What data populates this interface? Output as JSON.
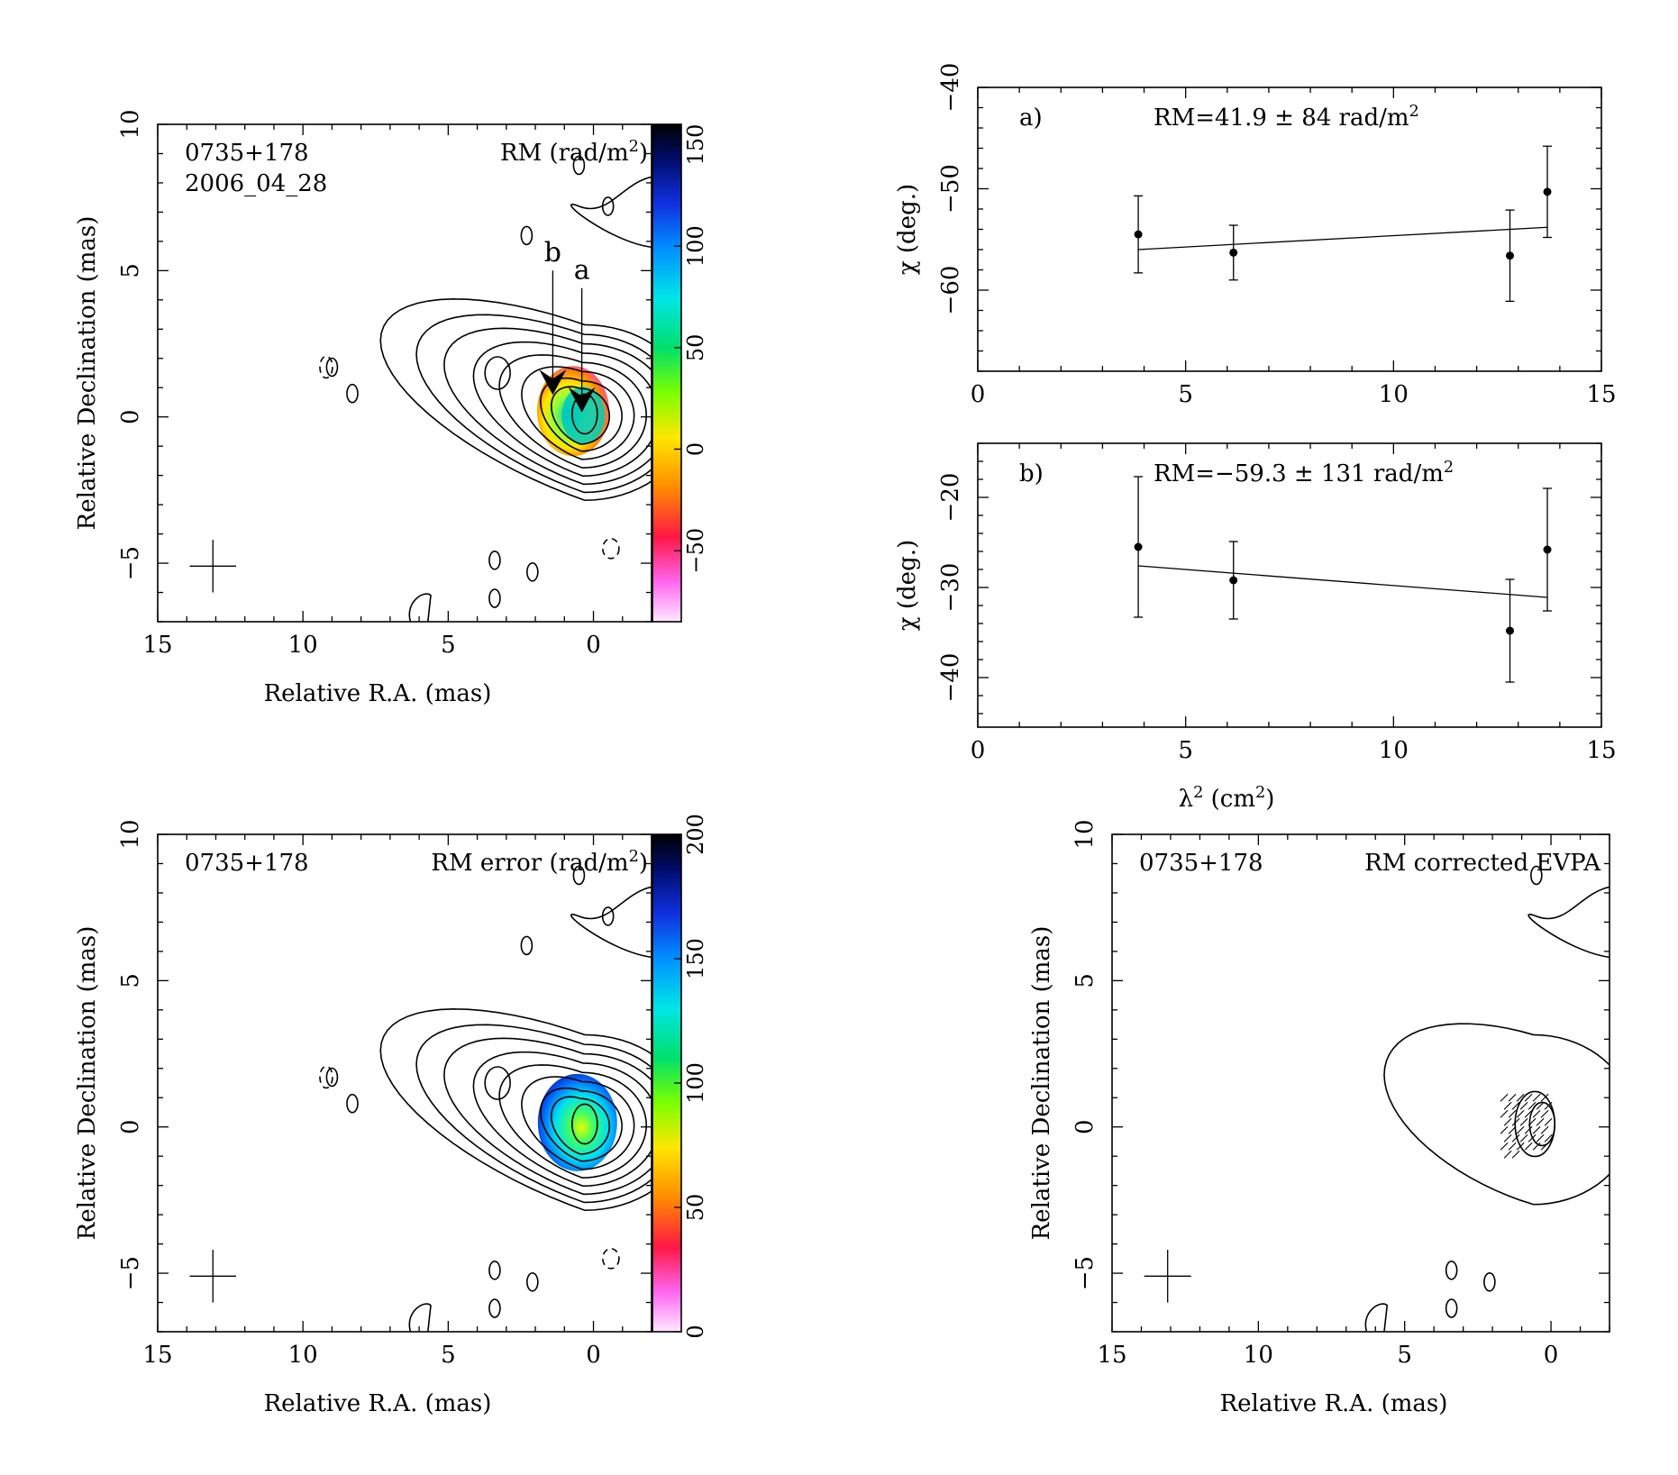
{
  "chart_data": [
    {
      "id": "rm_map",
      "type": "heatmap",
      "source_label": "0735+178",
      "epoch_label": "2006_04_28",
      "colorbar_title": "RM (rad/m²)",
      "xlabel": "Relative R.A. (mas)",
      "ylabel": "Relative Declination (mas)",
      "xlim": [
        15,
        -2
      ],
      "ylim": [
        -7,
        10
      ],
      "xticks": [
        "15",
        "10",
        "5",
        "0"
      ],
      "yticks": [
        "−5",
        "0",
        "5",
        "10"
      ],
      "colorbar_range": [
        -85,
        160
      ],
      "colorbar_ticks": [
        "−50",
        "0",
        "50",
        "100",
        "150"
      ],
      "region_markers": [
        {
          "label": "b",
          "x": 1.4,
          "y": 1.0
        },
        {
          "label": "a",
          "x": 0.4,
          "y": 0.4
        }
      ]
    },
    {
      "id": "fit_a",
      "type": "scatter",
      "panel_label": "a)",
      "annotation": "RM=41.9 ± 84 rad/m²",
      "xlabel": "",
      "ylabel": "χ (deg.)",
      "xlim": [
        0,
        15
      ],
      "ylim": [
        -68,
        -40
      ],
      "xticks": [
        "0",
        "5",
        "10",
        "15"
      ],
      "yticks": [
        "−60",
        "−50",
        "−40"
      ],
      "points": [
        {
          "x": 3.86,
          "y": -54.5,
          "err": 3.8
        },
        {
          "x": 6.15,
          "y": -56.3,
          "err": 2.7
        },
        {
          "x": 12.8,
          "y": -56.6,
          "err": 4.5
        },
        {
          "x": 13.7,
          "y": -50.3,
          "err": 4.5
        }
      ],
      "fit": [
        [
          3.86,
          -56.0
        ],
        [
          13.7,
          -53.8
        ]
      ]
    },
    {
      "id": "fit_b",
      "type": "scatter",
      "panel_label": "b)",
      "annotation": "RM=−59.3 ± 131 rad/m²",
      "xlabel": "λ² (cm²)",
      "ylabel": "χ (deg.)",
      "xlim": [
        0,
        15
      ],
      "ylim": [
        -45.5,
        -14
      ],
      "xticks": [
        "0",
        "5",
        "10",
        "15"
      ],
      "yticks": [
        "−40",
        "−30",
        "−20"
      ],
      "points": [
        {
          "x": 3.86,
          "y": -25.5,
          "err": 7.8
        },
        {
          "x": 6.15,
          "y": -29.2,
          "err": 4.3
        },
        {
          "x": 12.8,
          "y": -34.8,
          "err": 5.7
        },
        {
          "x": 13.7,
          "y": -25.8,
          "err": 6.8
        }
      ],
      "fit": [
        [
          3.86,
          -27.6
        ],
        [
          13.7,
          -31.1
        ]
      ]
    },
    {
      "id": "rm_error_map",
      "type": "heatmap",
      "source_label": "0735+178",
      "colorbar_title": "RM error (rad/m²)",
      "xlabel": "Relative R.A. (mas)",
      "ylabel": "Relative Declination (mas)",
      "xlim": [
        15,
        -2
      ],
      "ylim": [
        -7,
        10
      ],
      "xticks": [
        "15",
        "10",
        "5",
        "0"
      ],
      "yticks": [
        "−5",
        "0",
        "5",
        "10"
      ],
      "colorbar_range": [
        0,
        200
      ],
      "colorbar_ticks": [
        "0",
        "50",
        "100",
        "150",
        "200"
      ]
    },
    {
      "id": "evpa_map",
      "type": "heatmap",
      "source_label": "0735+178",
      "title": "RM corrected EVPA",
      "xlabel": "Relative R.A. (mas)",
      "ylabel": "Relative Declination (mas)",
      "xlim": [
        15,
        -2
      ],
      "ylim": [
        -7,
        10
      ],
      "xticks": [
        "15",
        "10",
        "5",
        "0"
      ],
      "yticks": [
        "−5",
        "0",
        "5",
        "10"
      ]
    }
  ]
}
